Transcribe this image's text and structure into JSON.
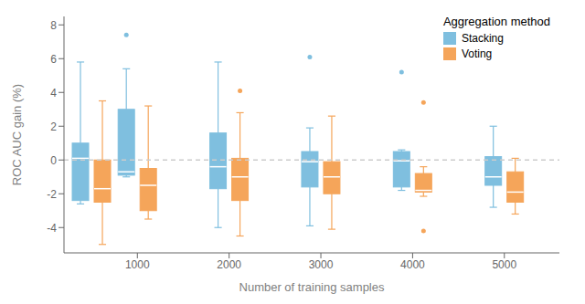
{
  "chart_data": {
    "type": "box",
    "xlabel": "Number of training samples",
    "ylabel": "ROC AUC gain (%)",
    "x": [
      500,
      1000,
      2000,
      3000,
      4000,
      5000
    ],
    "xlim": [
      200,
      5600
    ],
    "xticks": [
      1000,
      2000,
      3000,
      4000,
      5000
    ],
    "ylim": [
      -5.5,
      8.5
    ],
    "yticks": [
      -4,
      -2,
      0,
      2,
      4,
      6,
      8
    ],
    "grid": false,
    "legend": "upper right",
    "legend_title": "Aggregation method",
    "reference_lines": [
      {
        "y": 0,
        "line_style": "dashed"
      }
    ],
    "series": [
      {
        "name": "Stacking",
        "color": "#7fbfdf",
        "values": [
          {
            "low": -2.6,
            "q1": -2.4,
            "median": 0.1,
            "q3": 1.0,
            "high": 5.8,
            "fliers": []
          },
          {
            "low": -1.0,
            "q1": -0.9,
            "median": -0.7,
            "q3": 3.0,
            "high": 5.4,
            "fliers": [
              7.4
            ]
          },
          {
            "low": -4.0,
            "q1": -1.7,
            "median": -0.4,
            "q3": 1.6,
            "high": 5.8,
            "fliers": []
          },
          {
            "low": -3.9,
            "q1": -1.6,
            "median": -0.1,
            "q3": 0.5,
            "high": 1.9,
            "fliers": [
              6.1
            ]
          },
          {
            "low": -1.8,
            "q1": -1.6,
            "median": -0.05,
            "q3": 0.5,
            "high": 0.6,
            "fliers": [
              5.2
            ]
          },
          {
            "low": -2.8,
            "q1": -1.5,
            "median": -1.0,
            "q3": 0.2,
            "high": 2.0,
            "fliers": []
          }
        ]
      },
      {
        "name": "Voting",
        "color": "#f5a55a",
        "values": [
          {
            "low": -5.0,
            "q1": -2.5,
            "median": -1.7,
            "q3": 0.0,
            "high": 3.5,
            "fliers": []
          },
          {
            "low": -3.5,
            "q1": -3.0,
            "median": -1.5,
            "q3": -0.5,
            "high": 3.2,
            "fliers": []
          },
          {
            "low": -4.5,
            "q1": -2.4,
            "median": -1.0,
            "q3": 0.1,
            "high": 2.8,
            "fliers": [
              4.1
            ]
          },
          {
            "low": -4.1,
            "q1": -2.0,
            "median": -1.0,
            "q3": -0.1,
            "high": 2.6,
            "fliers": []
          },
          {
            "low": -2.15,
            "q1": -1.9,
            "median": -1.8,
            "q3": -0.8,
            "high": -0.4,
            "fliers": [
              3.4,
              -4.2
            ]
          },
          {
            "low": -3.2,
            "q1": -2.5,
            "median": -1.9,
            "q3": -0.7,
            "high": 0.1,
            "fliers": []
          }
        ]
      }
    ]
  }
}
